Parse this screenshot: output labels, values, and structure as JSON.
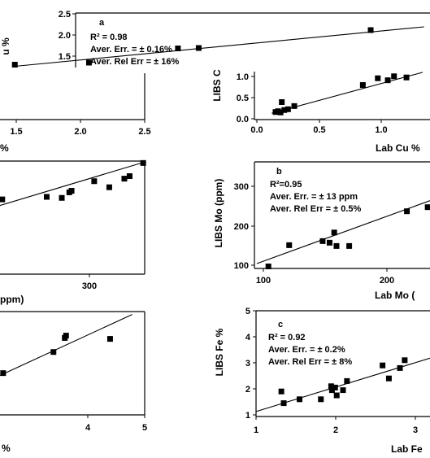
{
  "chart_data": [
    {
      "id": "cu_top_fragment",
      "type": "scatter",
      "panel_label": "a",
      "annotations": [
        "R² = 0.98",
        "Aver. Err. = ± 0.16%",
        "Aver. Rel Err = ± 16%"
      ],
      "ylabel": "LIBS Cu %",
      "ylabel_visible": "u %",
      "y_ticks": [
        "1.5",
        "2.0",
        "2.5"
      ],
      "ylim": [
        1.2,
        2.5
      ],
      "xlim": [
        0.05,
        1.5
      ],
      "x": [
        0.1,
        0.35,
        0.65,
        0.72,
        1.3
      ],
      "y": [
        1.25,
        1.3,
        1.65,
        1.66,
        2.1
      ],
      "fit": [
        [
          0.1,
          1.21
        ],
        [
          1.48,
          2.18
        ]
      ]
    },
    {
      "id": "cu_left_axis_fragment",
      "type": "scatter",
      "x_ticks": [
        "1.5",
        "2.0",
        "2.5"
      ],
      "xlim": [
        1.0,
        2.5
      ],
      "xlabel_visible": "%"
    },
    {
      "id": "cu_right",
      "type": "scatter",
      "xlabel": "Lab Cu %",
      "ylabel": "LIBS Cu %",
      "ylabel_visible": "LIBS C",
      "x_ticks": [
        "0.0",
        "0.5",
        "1.0"
      ],
      "y_ticks": [
        "0.0",
        "0.5",
        "1.0"
      ],
      "xlim": [
        0,
        1.33
      ],
      "ylim": [
        -0.02,
        1.25
      ],
      "x": [
        0.15,
        0.17,
        0.19,
        0.2,
        0.22,
        0.25,
        0.3,
        0.85,
        0.97,
        1.05,
        1.1,
        1.2
      ],
      "y": [
        0.15,
        0.17,
        0.14,
        0.4,
        0.2,
        0.22,
        0.3,
        0.83,
        1.0,
        0.95,
        1.05,
        1.02
      ],
      "fit": [
        [
          0.12,
          0.12
        ],
        [
          1.33,
          1.15
        ]
      ]
    },
    {
      "id": "mo_left_fragment",
      "type": "scatter",
      "xlabel_visible": "ppm)",
      "x_ticks": [
        "300"
      ],
      "xlim": [
        160,
        352
      ],
      "ylim": [
        100,
        330
      ],
      "x": [
        163,
        222,
        242,
        252,
        255,
        285,
        305,
        325,
        332,
        350
      ],
      "y": [
        251,
        256,
        254,
        265,
        268,
        287,
        275,
        292,
        297,
        323
      ],
      "fit": [
        [
          160,
          239
        ],
        [
          352,
          325
        ]
      ]
    },
    {
      "id": "mo_right",
      "type": "scatter",
      "panel_label": "b",
      "annotations": [
        "R²=0.95",
        "Aver. Err. = ± 13 ppm",
        "Aver. Rel Err = ± 0.5%"
      ],
      "xlabel": "Lab Mo (ppm)",
      "xlabel_visible": "Lab Mo (",
      "ylabel": "LIBS Mo (ppm)",
      "x_ticks": [
        "100",
        "200"
      ],
      "y_ticks": [
        "100",
        "200",
        "300"
      ],
      "xlim": [
        95,
        245
      ],
      "ylim": [
        95,
        330
      ],
      "x": [
        105,
        123,
        152,
        158,
        162,
        164,
        175,
        225,
        243
      ],
      "y": [
        100,
        152,
        162,
        158,
        183,
        150,
        150,
        235,
        245
      ],
      "fit": [
        [
          95,
          107
        ],
        [
          245,
          261
        ]
      ]
    },
    {
      "id": "fe_left_fragment",
      "type": "scatter",
      "x_ticks": [
        "4",
        "5"
      ],
      "xlabel_visible": "%",
      "xlim": [
        2.7,
        5.0
      ],
      "ylim": [
        1.5,
        4.0
      ],
      "x": [
        2.75,
        3.55,
        3.73,
        3.75,
        4.45
      ],
      "y": [
        2.6,
        3.05,
        3.35,
        3.4,
        3.33
      ],
      "fit": [
        [
          2.7,
          2.55
        ],
        [
          4.8,
          3.85
        ]
      ]
    },
    {
      "id": "fe_right",
      "type": "scatter",
      "panel_label": "c",
      "annotations": [
        "R² = 0.92",
        "Aver. Err. = ± 0.2%",
        "Aver. Rel Err = ± 8%"
      ],
      "xlabel": "Lab Fe %",
      "xlabel_visible": "Lab Fe",
      "ylabel": "LIBS Fe %",
      "x_ticks": [
        "1",
        "2",
        "3"
      ],
      "y_ticks": [
        "1",
        "2",
        "3",
        "4",
        "5"
      ],
      "xlim": [
        1,
        3.2
      ],
      "ylim": [
        1,
        5
      ],
      "x": [
        1.32,
        1.35,
        1.55,
        1.82,
        1.95,
        1.96,
        2.0,
        2.02,
        2.1,
        2.15,
        2.6,
        2.68,
        2.82,
        2.88
      ],
      "y": [
        1.9,
        1.45,
        1.6,
        1.6,
        2.1,
        1.95,
        2.05,
        1.75,
        1.95,
        2.3,
        2.9,
        2.4,
        2.8,
        3.1
      ],
      "fit": [
        [
          1.0,
          1.13
        ],
        [
          3.2,
          3.18
        ]
      ]
    }
  ]
}
